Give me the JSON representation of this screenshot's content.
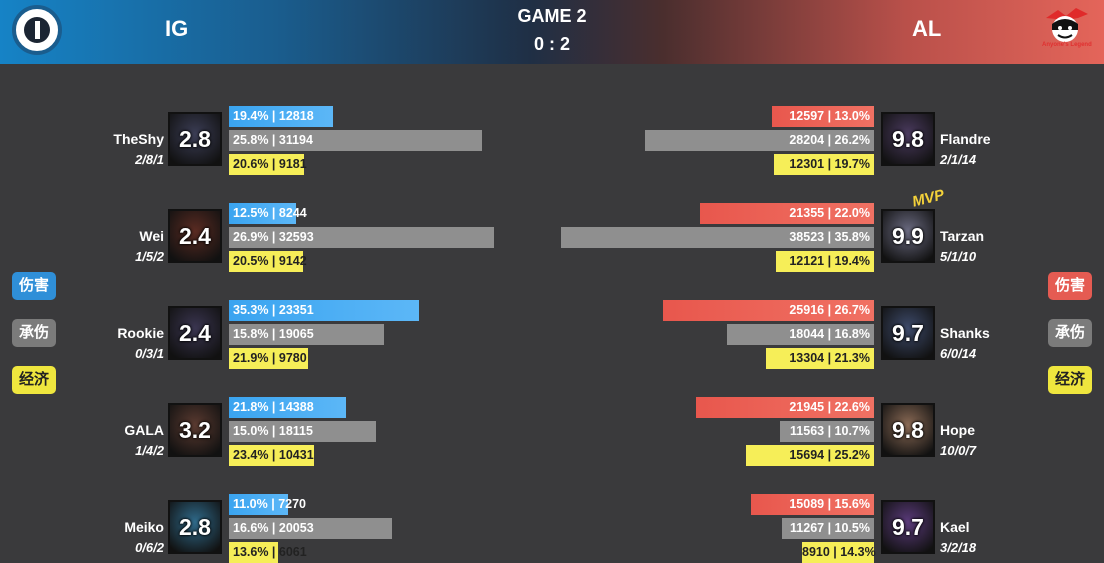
{
  "header": {
    "team_left": "IG",
    "team_right": "AL",
    "game_title": "GAME 2",
    "score": "0 : 2",
    "right_logo_text": "Anyone's Legend"
  },
  "side_buttons": {
    "damage": "伤害",
    "tanked": "承伤",
    "economy": "经济"
  },
  "mvp_label": "MVP",
  "colors": {
    "left_damage": "#3aa4f0",
    "right_damage": "#e8574d",
    "tanked": "#8f8f8f",
    "economy": "#f6ee58"
  },
  "left_team": [
    {
      "name": "TheShy",
      "kda": "2/8/1",
      "rating": "2.8",
      "damage": "19.4% | 12818",
      "tanked": "25.8% | 31194",
      "economy": "20.6% | 9181",
      "damage_value": 12818,
      "tanked_value": 31194,
      "economy_value": 9181
    },
    {
      "name": "Wei",
      "kda": "1/5/2",
      "rating": "2.4",
      "damage": "12.5% | 8244",
      "tanked": "26.9% | 32593",
      "economy": "20.5% | 9142",
      "damage_value": 8244,
      "tanked_value": 32593,
      "economy_value": 9142
    },
    {
      "name": "Rookie",
      "kda": "0/3/1",
      "rating": "2.4",
      "damage": "35.3% | 23351",
      "tanked": "15.8% | 19065",
      "economy": "21.9% | 9780",
      "damage_value": 23351,
      "tanked_value": 19065,
      "economy_value": 9780
    },
    {
      "name": "GALA",
      "kda": "1/4/2",
      "rating": "3.2",
      "damage": "21.8% | 14388",
      "tanked": "15.0% | 18115",
      "economy": "23.4% | 10431",
      "damage_value": 14388,
      "tanked_value": 18115,
      "economy_value": 10431
    },
    {
      "name": "Meiko",
      "kda": "0/6/2",
      "rating": "2.8",
      "damage": "11.0% | 7270",
      "tanked": "16.6% | 20053",
      "economy": "13.6% | 6061",
      "damage_value": 7270,
      "tanked_value": 20053,
      "economy_value": 6061
    }
  ],
  "right_team": [
    {
      "name": "Flandre",
      "kda": "2/1/14",
      "rating": "9.8",
      "damage": "12597 | 13.0%",
      "tanked": "28204 | 26.2%",
      "economy": "12301 | 19.7%",
      "damage_value": 12597,
      "tanked_value": 28204,
      "economy_value": 12301
    },
    {
      "name": "Tarzan",
      "kda": "5/1/10",
      "rating": "9.9",
      "damage": "21355 | 22.0%",
      "tanked": "38523 | 35.8%",
      "economy": "12121 | 19.4%",
      "damage_value": 21355,
      "tanked_value": 38523,
      "economy_value": 12121
    },
    {
      "name": "Shanks",
      "kda": "6/0/14",
      "rating": "9.7",
      "damage": "25916 | 26.7%",
      "tanked": "18044 | 16.8%",
      "economy": "13304 | 21.3%",
      "damage_value": 25916,
      "tanked_value": 18044,
      "economy_value": 13304
    },
    {
      "name": "Hope",
      "kda": "10/0/7",
      "rating": "9.8",
      "damage": "21945 | 22.6%",
      "tanked": "11563 | 10.7%",
      "economy": "15694 | 25.2%",
      "damage_value": 21945,
      "tanked_value": 11563,
      "economy_value": 15694
    },
    {
      "name": "Kael",
      "kda": "3/2/18",
      "rating": "9.7",
      "damage": "15089 | 15.6%",
      "tanked": "11267 | 10.5%",
      "economy": "8910 | 14.3%",
      "damage_value": 15089,
      "tanked_value": 11267,
      "economy_value": 8910
    }
  ]
}
